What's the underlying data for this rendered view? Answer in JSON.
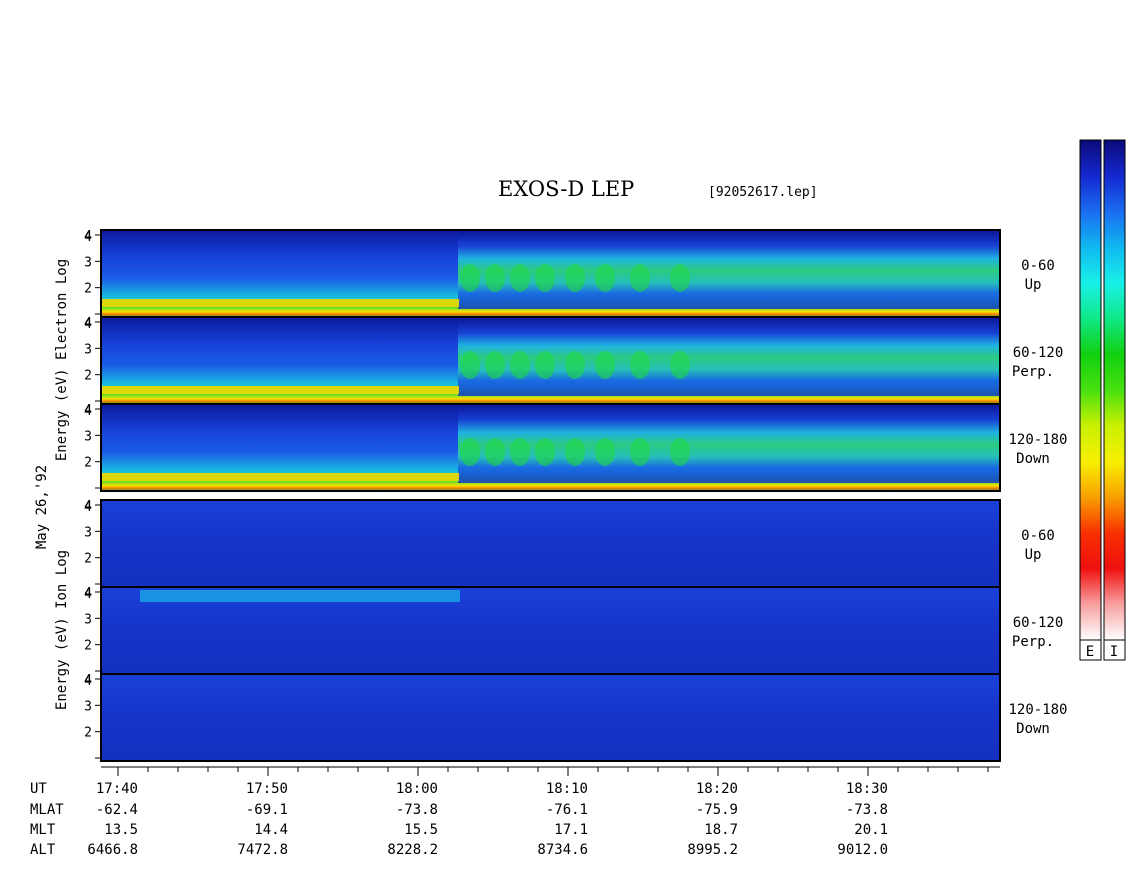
{
  "title": "EXOS-D LEP",
  "filename": "[92052617.lep]",
  "date_label": "May 26,'92",
  "colors": {
    "background_fill": "#0a1fb5",
    "frame": "#000000"
  },
  "colorbar": {
    "labels": [
      "E",
      "I"
    ],
    "gradient": [
      "#0a0a78",
      "#1428d0",
      "#1a6cf0",
      "#10b8f0",
      "#18f0e8",
      "#10e888",
      "#10d010",
      "#48e010",
      "#c8f000",
      "#f8f000",
      "#f8a000",
      "#f83000",
      "#f01010",
      "#f8a0a0",
      "#ffffff"
    ]
  },
  "groups": [
    {
      "label_lines": [
        "Log",
        "Electron",
        "Energy (eV)"
      ],
      "panels": [
        {
          "angle": "0-60",
          "direction": "Up"
        },
        {
          "angle": "60-120",
          "direction": "Perp."
        },
        {
          "angle": "120-180",
          "direction": "Down"
        }
      ]
    },
    {
      "label_lines": [
        "Log",
        "Ion",
        "Energy (eV)"
      ],
      "panels": [
        {
          "angle": "0-60",
          "direction": "Up"
        },
        {
          "angle": "60-120",
          "direction": "Perp."
        },
        {
          "angle": "120-180",
          "direction": "Down"
        }
      ]
    }
  ],
  "chart_data": {
    "type": "heatmap",
    "title": "EXOS-D LEP",
    "subtitle": "[92052617.lep]",
    "x_ticks": [
      "17:40",
      "17:50",
      "18:00",
      "18:10",
      "18:20",
      "18:30"
    ],
    "x_range": [
      "17:39",
      "18:39"
    ],
    "y_ticks": [
      2,
      3,
      4
    ],
    "ylabels": [
      "Log Electron Energy (eV)",
      "Log Ion Energy (eV)"
    ],
    "panels": [
      "0-60 Up",
      "60-120 Perp.",
      "120-180 Down",
      "0-60 Up",
      "60-120 Perp.",
      "120-180 Down"
    ],
    "ephemeris": [
      {
        "name": "UT",
        "values": [
          "17:40",
          "17:50",
          "18:00",
          "18:10",
          "18:20",
          "18:30"
        ]
      },
      {
        "name": "MLAT",
        "values": [
          "-62.4",
          "-69.1",
          "-73.8",
          "-76.1",
          "-75.9",
          "-73.8"
        ]
      },
      {
        "name": "MLT",
        "values": [
          "13.5",
          "14.4",
          "15.5",
          "17.1",
          "18.7",
          "20.1"
        ]
      },
      {
        "name": "ALT",
        "values": [
          "6466.8",
          "7472.8",
          "8228.2",
          "8734.6",
          "8995.2",
          "9012.0"
        ]
      }
    ]
  }
}
